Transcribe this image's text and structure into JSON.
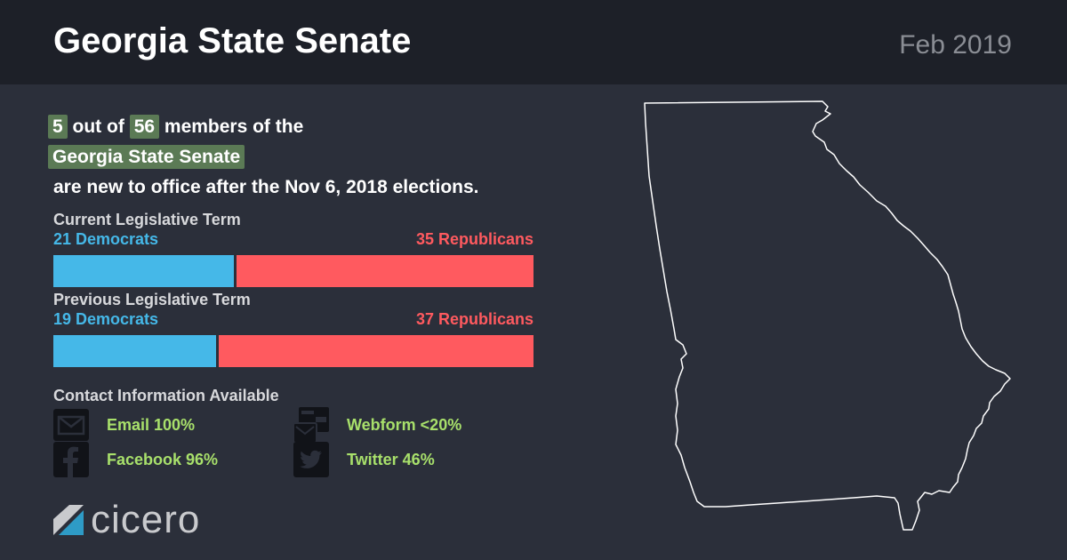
{
  "header": {
    "title": "Georgia State Senate",
    "date": "Feb 2019"
  },
  "headline": {
    "new_count": "5",
    "out_of": "out of",
    "total": "56",
    "members_of_the": "members of the",
    "body_name": "Georgia State Senate",
    "suffix": "are new to office after the Nov 6, 2018 elections."
  },
  "chart_data": [
    {
      "type": "bar",
      "title": "Current Legislative Term",
      "series": [
        {
          "name": "Democrats",
          "values": [
            21
          ],
          "color": "#45b8e8"
        },
        {
          "name": "Republicans",
          "values": [
            35
          ],
          "color": "#ff5a5f"
        }
      ],
      "labels": {
        "dem": "21 Democrats",
        "rep": "35 Republicans"
      }
    },
    {
      "type": "bar",
      "title": "Previous Legislative Term",
      "series": [
        {
          "name": "Democrats",
          "values": [
            19
          ],
          "color": "#45b8e8"
        },
        {
          "name": "Republicans",
          "values": [
            37
          ],
          "color": "#ff5a5f"
        }
      ],
      "labels": {
        "dem": "19 Democrats",
        "rep": "37 Republicans"
      }
    }
  ],
  "contact": {
    "title": "Contact Information Available",
    "items": [
      {
        "icon": "email-icon",
        "label": "Email 100%"
      },
      {
        "icon": "webform-icon",
        "label": "Webform <20%"
      },
      {
        "icon": "facebook-icon",
        "label": "Facebook 96%"
      },
      {
        "icon": "twitter-icon",
        "label": "Twitter 46%"
      }
    ]
  },
  "logo": {
    "text": "cicero"
  },
  "colors": {
    "background": "#2b2f3a",
    "header": "#1d2028",
    "democrat": "#45b8e8",
    "republican": "#ff5a5f",
    "highlight": "#5b7a55",
    "contact_text": "#a8e06b"
  }
}
